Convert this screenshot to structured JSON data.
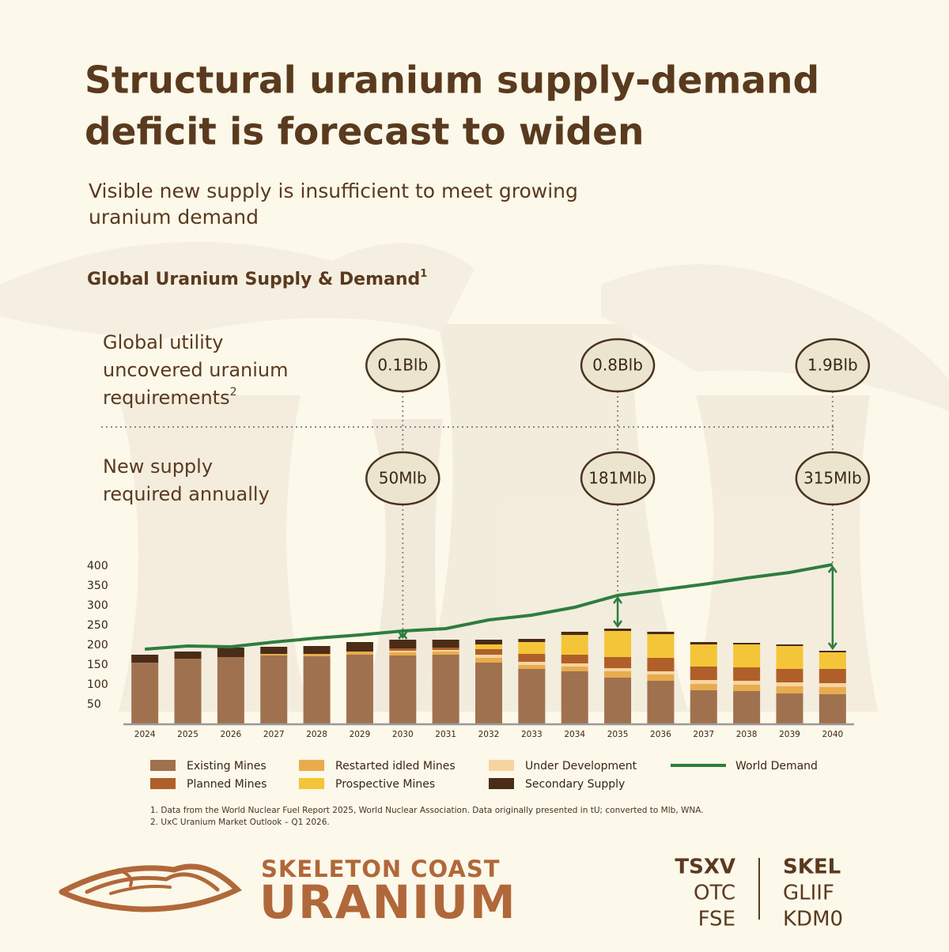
{
  "header": {
    "title_lines": [
      "Structural uranium supply-demand",
      "deficit is forecast to widen"
    ],
    "subtitle_lines": [
      "Visible new supply is insufficient to meet growing",
      "uranium demand"
    ]
  },
  "chart_heading": {
    "text": "Global Uranium Supply & Demand",
    "note": "1"
  },
  "row_labels": {
    "uncovered_lines": [
      "Global utility",
      "uncovered uranium",
      "requirements"
    ],
    "uncovered_note": "2",
    "new_supply_lines": [
      "New supply",
      "required annually"
    ]
  },
  "callouts": [
    {
      "uncovered": "0.1Blb",
      "new_supply": "50Mlb"
    },
    {
      "uncovered": "0.8Blb",
      "new_supply": "181Mlb"
    },
    {
      "uncovered": "1.9Blb",
      "new_supply": "315Mlb"
    }
  ],
  "chart_data": {
    "type": "bar",
    "stacked": true,
    "categories": [
      "2024",
      "2025",
      "2026",
      "2027",
      "2028",
      "2029",
      "2030",
      "2031",
      "2032",
      "2033",
      "2034",
      "2035",
      "2036",
      "2037",
      "2038",
      "2039",
      "2040"
    ],
    "ylim": [
      0,
      400
    ],
    "yticks": [
      50,
      100,
      150,
      200,
      250,
      300,
      350,
      400
    ],
    "grid": false,
    "series": [
      {
        "name": "Existing Mines",
        "color": "#a0714f",
        "values": [
          156,
          166,
          170,
          174,
          172,
          176,
          174,
          176,
          156,
          140,
          134,
          118,
          110,
          86,
          84,
          78,
          76
        ]
      },
      {
        "name": "Restarted idled Mines",
        "color": "#e8ac4e",
        "values": [
          0,
          0,
          0,
          4,
          6,
          8,
          8,
          8,
          12,
          10,
          12,
          16,
          16,
          16,
          16,
          18,
          18
        ]
      },
      {
        "name": "Under Development",
        "color": "#f7d4a0",
        "values": [
          0,
          0,
          0,
          0,
          0,
          0,
          4,
          4,
          8,
          8,
          8,
          8,
          8,
          10,
          10,
          10,
          10
        ]
      },
      {
        "name": "Planned Mines",
        "color": "#b05f2a",
        "values": [
          0,
          0,
          0,
          0,
          0,
          0,
          6,
          6,
          14,
          20,
          22,
          28,
          34,
          34,
          34,
          34,
          36
        ]
      },
      {
        "name": "Prospective Mines",
        "color": "#f4c538",
        "values": [
          0,
          0,
          0,
          0,
          0,
          0,
          0,
          0,
          12,
          30,
          50,
          66,
          60,
          56,
          58,
          58,
          42
        ]
      },
      {
        "name": "Secondary Supply",
        "color": "#4a2c17",
        "values": [
          20,
          18,
          24,
          18,
          20,
          24,
          22,
          20,
          12,
          8,
          8,
          6,
          6,
          6,
          4,
          4,
          4
        ]
      },
      {
        "name": "World Demand",
        "color": "#2e7d3e",
        "type": "line",
        "values": [
          190,
          198,
          196,
          208,
          218,
          226,
          236,
          242,
          264,
          276,
          296,
          326,
          340,
          354,
          370,
          384,
          404
        ]
      }
    ]
  },
  "footnotes": [
    "1. Data from the World Nuclear Fuel Report 2025, World Nuclear Association. Data originally presented in tU; converted to Mlb, WNA.",
    "2. UxC Uranium Market Outlook – Q1 2026."
  ],
  "brand": {
    "line1": "SKELETON COAST",
    "line2": "URANIUM"
  },
  "listings": {
    "exchanges": [
      "TSXV",
      "OTC",
      "FSE"
    ],
    "symbols": [
      "SKEL",
      "GLIIF",
      "KDM0"
    ]
  }
}
